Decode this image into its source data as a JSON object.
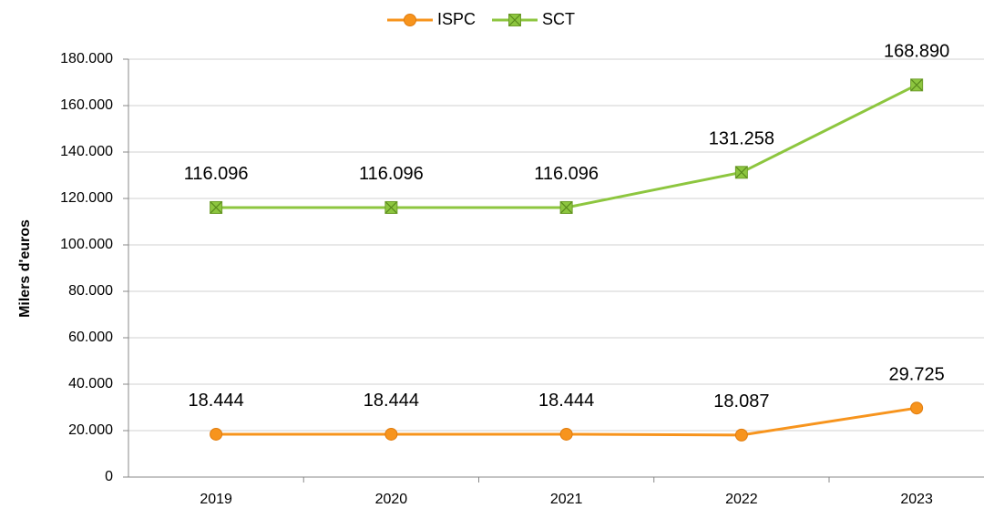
{
  "chart_data": {
    "type": "line",
    "y_label": "Milers d'euros",
    "categories": [
      "2019",
      "2020",
      "2021",
      "2022",
      "2023"
    ],
    "series": [
      {
        "name": "ISPC",
        "color": "#f7941d",
        "marker": "circle",
        "values": [
          18444,
          18444,
          18444,
          18087,
          29725
        ],
        "value_labels": [
          "18.444",
          "18.444",
          "18.444",
          "18.087",
          "29.725"
        ]
      },
      {
        "name": "SCT",
        "color": "#8dc63f",
        "marker": "square-x",
        "values": [
          116096,
          116096,
          116096,
          131258,
          168890
        ],
        "value_labels": [
          "116.096",
          "116.096",
          "116.096",
          "131.258",
          "168.890"
        ]
      }
    ],
    "ylim": [
      0,
      180000
    ],
    "yticks": [
      0,
      {
        "value": 20000,
        "label": "20.000"
      },
      {
        "value": 40000,
        "label": "40.000"
      },
      {
        "value": 60000,
        "label": "60.000"
      },
      {
        "value": 80000,
        "label": "80.000"
      },
      {
        "value": 100000,
        "label": "100.000"
      },
      {
        "value": 120000,
        "label": "120.000"
      },
      {
        "value": 140000,
        "label": "140.000"
      },
      {
        "value": 160000,
        "label": "160.000"
      },
      {
        "value": 180000,
        "label": "180.000"
      }
    ],
    "grid": true,
    "legend": "top"
  }
}
